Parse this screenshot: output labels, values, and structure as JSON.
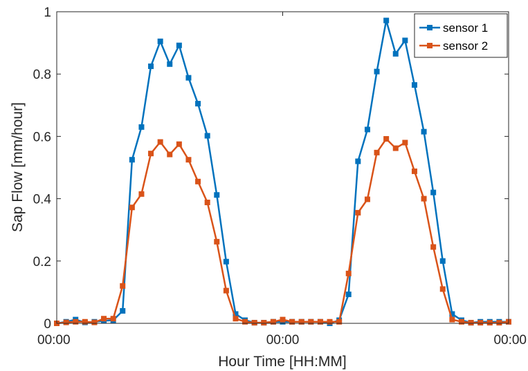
{
  "chart_data": {
    "type": "line",
    "xlabel": "Hour Time [HH:MM]",
    "ylabel": "Sap Flow [mm/hour]",
    "ylim": [
      0,
      1
    ],
    "yticks": [
      "0",
      "0.2",
      "0.4",
      "0.6",
      "0.8",
      "1"
    ],
    "xticks": [
      "00:00",
      "00:00",
      "00:00"
    ],
    "xlim": [
      0,
      48
    ],
    "grid": false,
    "legend_position": "top-right",
    "x": [
      0,
      1,
      2,
      3,
      4,
      5,
      6,
      7,
      8,
      9,
      10,
      11,
      12,
      13,
      14,
      15,
      16,
      17,
      18,
      19,
      20,
      21,
      22,
      23,
      24,
      25,
      26,
      27,
      28,
      29,
      30,
      31,
      32,
      33,
      34,
      35,
      36,
      37,
      38,
      39,
      40,
      41,
      42,
      43,
      44,
      45,
      46,
      47,
      48
    ],
    "series": [
      {
        "name": "sensor 1",
        "color": "#0072BD",
        "values": [
          0.0,
          0.005,
          0.012,
          0.003,
          0.005,
          0.008,
          0.01,
          0.04,
          0.525,
          0.63,
          0.825,
          0.905,
          0.832,
          0.892,
          0.788,
          0.705,
          0.602,
          0.412,
          0.198,
          0.03,
          0.01,
          0.002,
          0.002,
          0.005,
          0.005,
          0.005,
          0.005,
          0.005,
          0.005,
          0.0,
          0.01,
          0.093,
          0.52,
          0.622,
          0.808,
          0.972,
          0.865,
          0.908,
          0.765,
          0.615,
          0.42,
          0.2,
          0.03,
          0.01,
          0.002,
          0.005,
          0.005,
          0.005,
          0.005
        ]
      },
      {
        "name": "sensor 2",
        "color": "#D95319",
        "values": [
          0.0,
          0.003,
          0.005,
          0.005,
          0.003,
          0.015,
          0.015,
          0.12,
          0.372,
          0.415,
          0.545,
          0.582,
          0.542,
          0.575,
          0.525,
          0.455,
          0.388,
          0.262,
          0.105,
          0.015,
          0.005,
          0.002,
          0.002,
          0.005,
          0.012,
          0.005,
          0.005,
          0.005,
          0.005,
          0.005,
          0.005,
          0.16,
          0.355,
          0.398,
          0.548,
          0.592,
          0.562,
          0.58,
          0.488,
          0.4,
          0.245,
          0.11,
          0.012,
          0.005,
          0.002,
          0.002,
          0.002,
          0.002,
          0.005
        ]
      }
    ]
  }
}
